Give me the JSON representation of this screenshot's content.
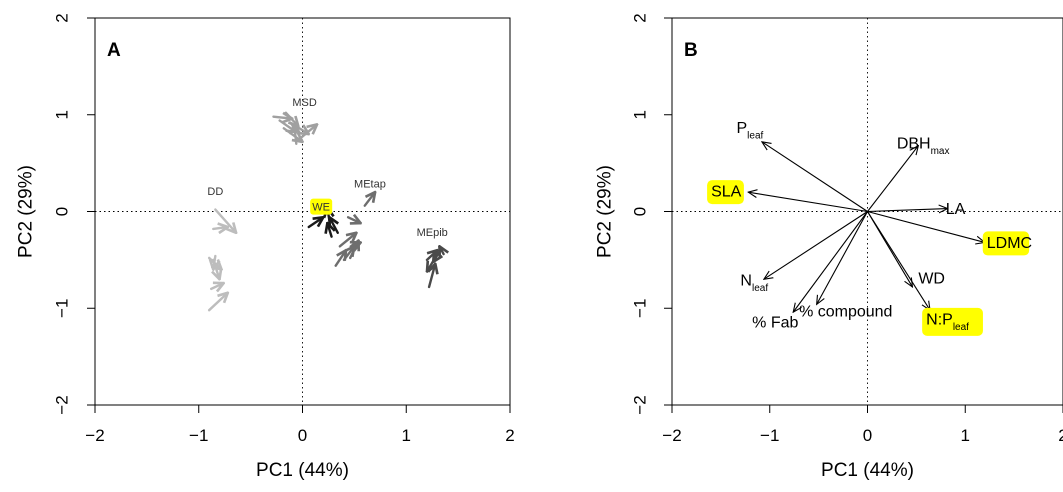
{
  "colors": {
    "highlight": "#ffff00",
    "light_gray": "#bdbdbd",
    "mid_gray": "#a0a0a0",
    "dark_gray": "#6e6e6e",
    "darker_gray": "#4a4a4a",
    "black": "#1a1a1a"
  },
  "chart_data": [
    {
      "panel": "A",
      "type": "scatter",
      "marker": "arrow",
      "xlabel": "PC1 (44%)",
      "ylabel": "PC2 (29%)",
      "xlim": [
        -2,
        2
      ],
      "ylim": [
        -2,
        2
      ],
      "xticks": [
        "−2",
        "−1",
        "0",
        "1",
        "2"
      ],
      "yticks": [
        "−2",
        "−1",
        "0",
        "1",
        "2"
      ],
      "reference_lines": "dotted at x=0 and y=0",
      "groups": [
        {
          "label": "MSD",
          "color": "gray",
          "label_pos": [
            0.02,
            1.12
          ],
          "highlight": false,
          "arrows": [
            [
              [
                -0.28,
                0.98
              ],
              [
                -0.1,
                0.96
              ]
            ],
            [
              [
                -0.16,
                1.02
              ],
              [
                -0.04,
                0.88
              ]
            ],
            [
              [
                -0.22,
                0.94
              ],
              [
                -0.06,
                0.82
              ]
            ],
            [
              [
                -0.04,
                0.74
              ],
              [
                0.14,
                0.9
              ]
            ],
            [
              [
                -0.18,
                0.86
              ],
              [
                0.0,
                0.72
              ]
            ],
            [
              [
                -0.12,
                0.92
              ],
              [
                0.06,
                0.8
              ]
            ],
            [
              [
                -0.06,
                0.7
              ],
              [
                -0.08,
                0.9
              ]
            ]
          ]
        },
        {
          "label": "DD",
          "color": "light",
          "label_pos": [
            -0.84,
            0.2
          ],
          "highlight": false,
          "arrows": [
            [
              [
                -0.84,
                0.02
              ],
              [
                -0.64,
                -0.22
              ]
            ],
            [
              [
                -0.86,
                -0.18
              ],
              [
                -0.72,
                -0.16
              ]
            ],
            [
              [
                -0.9,
                -0.48
              ],
              [
                -0.78,
                -0.6
              ]
            ],
            [
              [
                -0.86,
                -0.5
              ],
              [
                -0.8,
                -0.7
              ]
            ],
            [
              [
                -0.88,
                -0.8
              ],
              [
                -0.76,
                -0.74
              ]
            ],
            [
              [
                -0.9,
                -1.02
              ],
              [
                -0.72,
                -0.84
              ]
            ],
            [
              [
                -0.84,
                -0.46
              ],
              [
                -0.86,
                -0.6
              ]
            ]
          ]
        },
        {
          "label": "WE",
          "color": "black",
          "label_pos": [
            0.18,
            0.04
          ],
          "highlight": true,
          "arrows": [
            [
              [
                0.06,
                -0.16
              ],
              [
                0.2,
                -0.06
              ]
            ],
            [
              [
                0.26,
                -0.1
              ],
              [
                0.24,
                0.04
              ]
            ],
            [
              [
                0.34,
                -0.22
              ],
              [
                0.26,
                -0.06
              ]
            ],
            [
              [
                0.28,
                -0.26
              ],
              [
                0.24,
                -0.12
              ]
            ]
          ]
        },
        {
          "label": "MEtap",
          "color": "dark",
          "label_pos": [
            0.65,
            0.28
          ],
          "highlight": false,
          "arrows": [
            [
              [
                0.6,
                0.06
              ],
              [
                0.7,
                0.2
              ]
            ],
            [
              [
                0.44,
                -0.06
              ],
              [
                0.56,
                -0.12
              ]
            ],
            [
              [
                0.36,
                -0.36
              ],
              [
                0.52,
                -0.22
              ]
            ],
            [
              [
                0.32,
                -0.56
              ],
              [
                0.42,
                -0.4
              ]
            ],
            [
              [
                0.4,
                -0.5
              ],
              [
                0.5,
                -0.36
              ]
            ],
            [
              [
                0.46,
                -0.48
              ],
              [
                0.54,
                -0.3
              ]
            ],
            [
              [
                0.48,
                -0.36
              ],
              [
                0.56,
                -0.32
              ]
            ]
          ]
        },
        {
          "label": "MEpib",
          "color": "darker",
          "label_pos": [
            1.25,
            -0.22
          ],
          "highlight": false,
          "arrows": [
            [
              [
                1.2,
                -0.5
              ],
              [
                1.3,
                -0.4
              ]
            ],
            [
              [
                1.34,
                -0.38
              ],
              [
                1.26,
                -0.52
              ]
            ],
            [
              [
                1.22,
                -0.78
              ],
              [
                1.28,
                -0.54
              ]
            ],
            [
              [
                1.3,
                -0.44
              ],
              [
                1.2,
                -0.62
              ]
            ],
            [
              [
                1.36,
                -0.44
              ],
              [
                1.32,
                -0.36
              ]
            ]
          ]
        }
      ]
    },
    {
      "panel": "B",
      "type": "scatter",
      "marker": "biplot-vectors",
      "xlabel": "PC1 (44%)",
      "ylabel": "PC2 (29%)",
      "xlim": [
        -2,
        2
      ],
      "ylim": [
        -2,
        2
      ],
      "xticks": [
        "−2",
        "−1",
        "0",
        "1",
        "2"
      ],
      "yticks": [
        "−2",
        "−1",
        "0",
        "1",
        "2"
      ],
      "reference_lines": "dotted at x=0 and y=0",
      "vectors": [
        {
          "label": "P",
          "sub": "leaf",
          "x": -1.08,
          "y": 0.72,
          "label_x": -1.34,
          "label_y": 0.86,
          "anchor": "start",
          "highlight": false
        },
        {
          "label": "DBH",
          "sub": "max",
          "x": 0.52,
          "y": 0.68,
          "label_x": 0.3,
          "label_y": 0.7,
          "anchor": "start",
          "highlight": false
        },
        {
          "label": "SLA",
          "sub": "",
          "x": -1.22,
          "y": 0.2,
          "label_x": -1.6,
          "label_y": 0.2,
          "anchor": "start",
          "highlight": true
        },
        {
          "label": "LA",
          "sub": "",
          "x": 0.82,
          "y": 0.03,
          "label_x": 0.8,
          "label_y": 0.02,
          "anchor": "start",
          "highlight": false
        },
        {
          "label": "LDMC",
          "sub": "",
          "x": 1.2,
          "y": -0.32,
          "label_x": 1.22,
          "label_y": -0.33,
          "anchor": "start",
          "highlight": true
        },
        {
          "label": "WD",
          "sub": "",
          "x": 0.46,
          "y": -0.78,
          "label_x": 0.52,
          "label_y": -0.7,
          "anchor": "start",
          "highlight": false
        },
        {
          "label": "N:P",
          "sub": "leaf",
          "x": 0.64,
          "y": -1.02,
          "label_x": 0.6,
          "label_y": -1.12,
          "anchor": "start",
          "highlight": true
        },
        {
          "label": "N",
          "sub": "leaf",
          "x": -1.06,
          "y": -0.7,
          "label_x": -1.3,
          "label_y": -0.72,
          "anchor": "start",
          "highlight": false
        },
        {
          "label": "% Fab",
          "sub": "",
          "x": -0.76,
          "y": -1.04,
          "label_x": -1.18,
          "label_y": -1.15,
          "anchor": "start",
          "highlight": false
        },
        {
          "label": "% compound",
          "sub": "",
          "x": -0.52,
          "y": -0.96,
          "label_x": -0.7,
          "label_y": -1.04,
          "anchor": "start",
          "highlight": false
        }
      ]
    }
  ]
}
